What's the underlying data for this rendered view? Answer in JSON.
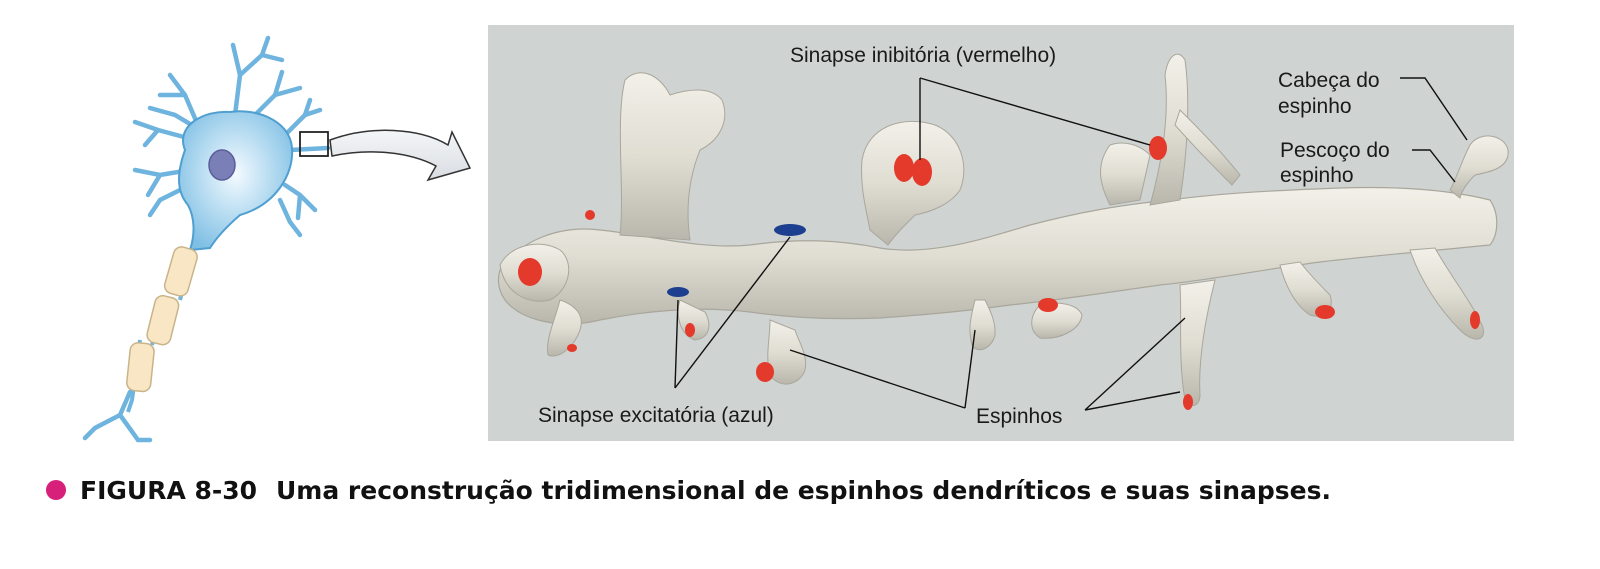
{
  "labels": {
    "inhibitory": "Sinapse inibitória (vermelho)",
    "excitatory": "Sinapse excitatória (azul)",
    "spines": "Espinhos",
    "head_line1": "Cabeça do",
    "head_line2": "espinho",
    "neck_line1": "Pescoço do",
    "neck_line2": "espinho"
  },
  "caption": {
    "number": "FIGURA 8-30",
    "text": "Uma reconstrução tridimensional de espinhos dendríticos e suas sinapses."
  },
  "colors": {
    "neuron_fill": "#8fc8e8",
    "neuron_stroke": "#4f9fd0",
    "nucleus": "#7b7fb8",
    "axon_segment": "#f8e6c4",
    "panel_bg": "#cfd3d2",
    "dendrite": "#e3e1d7",
    "inhibitory_synapse": "#e33a2c",
    "excitatory_synapse": "#1d3f8f",
    "bullet": "#d7207a"
  }
}
